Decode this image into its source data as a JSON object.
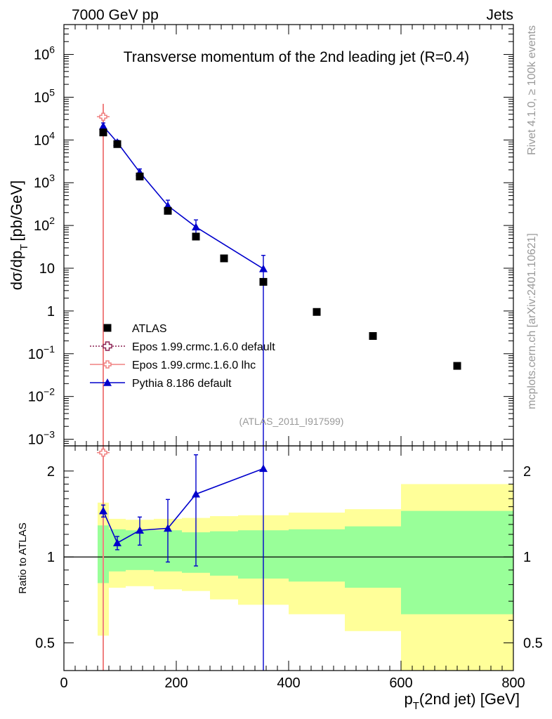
{
  "header": {
    "left": "7000 GeV pp",
    "right": "Jets"
  },
  "side_text": {
    "rivet": "Rivet 4.1.0, ≥ 100k events",
    "site": "mcplots.cern.ch [arXiv:2401.10621]"
  },
  "chart_data": [
    {
      "type": "scatter",
      "panel": "main",
      "title": "Transverse momentum of the 2nd leading jet (R=0.4)",
      "ylabel_main": "dσ/dp",
      "ylabel_sub": "T",
      "ylabel_unit": "[pb/GeV]",
      "yscale": "log",
      "ylim": [
        0.0007,
        5000000
      ],
      "xlim": [
        0,
        800
      ],
      "analysis_tag": "(ATLAS_2011_I917599)",
      "yticks": [
        {
          "value": 0.001,
          "base": "10",
          "exp": "−3"
        },
        {
          "value": 0.01,
          "base": "10",
          "exp": "−2"
        },
        {
          "value": 0.1,
          "base": "10",
          "exp": "−1"
        },
        {
          "value": 1,
          "base": "1",
          "exp": ""
        },
        {
          "value": 10,
          "base": "10",
          "exp": ""
        },
        {
          "value": 100,
          "base": "10",
          "exp": "2"
        },
        {
          "value": 1000,
          "base": "10",
          "exp": "3"
        },
        {
          "value": 10000,
          "base": "10",
          "exp": "4"
        },
        {
          "value": 100000,
          "base": "10",
          "exp": "5"
        },
        {
          "value": 1000000,
          "base": "10",
          "exp": "6"
        }
      ],
      "legend": [
        {
          "label": "ATLAS",
          "color": "#000000",
          "style": "square"
        },
        {
          "label": "Epos 1.99.crmc.1.6.0 default",
          "color": "#8b2252",
          "style": "dotted-cross"
        },
        {
          "label": "Epos 1.99.crmc.1.6.0 lhc",
          "color": "#f08080",
          "style": "solid-cross"
        },
        {
          "label": "Pythia 8.186 default",
          "color": "#0000cc",
          "style": "triangle"
        }
      ],
      "series": [
        {
          "name": "ATLAS",
          "color": "#000000",
          "points": [
            {
              "x": 70,
              "y": 15000
            },
            {
              "x": 95,
              "y": 8000
            },
            {
              "x": 135,
              "y": 1400
            },
            {
              "x": 185,
              "y": 220
            },
            {
              "x": 235,
              "y": 55
            },
            {
              "x": 285,
              "y": 17
            },
            {
              "x": 355,
              "y": 4.8
            },
            {
              "x": 450,
              "y": 0.95
            },
            {
              "x": 550,
              "y": 0.26
            },
            {
              "x": 700,
              "y": 0.052
            }
          ]
        },
        {
          "name": "Epos 1.99.crmc.1.6.0 lhc",
          "color": "#f08080",
          "points": [
            {
              "x": 70,
              "y": 35000,
              "ylo": 0.0001,
              "yhi": 70000
            }
          ]
        },
        {
          "name": "Pythia 8.186 default",
          "color": "#0000cc",
          "points": [
            {
              "x": 70,
              "y": 21000,
              "ylo": 17500,
              "yhi": 25000
            },
            {
              "x": 95,
              "y": 8800,
              "ylo": 7800,
              "yhi": 9800
            },
            {
              "x": 135,
              "y": 1750,
              "ylo": 1450,
              "yhi": 2100
            },
            {
              "x": 185,
              "y": 290,
              "ylo": 210,
              "yhi": 390
            },
            {
              "x": 235,
              "y": 92,
              "ylo": 55,
              "yhi": 135
            },
            {
              "x": 355,
              "y": 9.7,
              "ylo": 0.0001,
              "yhi": 20
            }
          ]
        }
      ]
    },
    {
      "type": "scatter",
      "panel": "ratio",
      "ylabel": "Ratio to ATLAS",
      "xlabel_main": "p",
      "xlabel_sub": "T",
      "xlabel_rest": "(2nd jet) [GeV]",
      "yscale": "log",
      "ylim": [
        0.4,
        2.45
      ],
      "xlim": [
        0,
        800
      ],
      "xticks": [
        {
          "value": 0,
          "label": "0"
        },
        {
          "value": 200,
          "label": "200"
        },
        {
          "value": 400,
          "label": "400"
        },
        {
          "value": 600,
          "label": "600"
        },
        {
          "value": 800,
          "label": "800"
        }
      ],
      "yticks": [
        {
          "value": 0.5,
          "label": "0.5"
        },
        {
          "value": 1,
          "label": "1"
        },
        {
          "value": 2,
          "label": "2"
        }
      ],
      "bands": [
        {
          "x0": 60,
          "x1": 80,
          "in_lo": 0.81,
          "in_hi": 1.29,
          "out_lo": 0.53,
          "out_hi": 1.55
        },
        {
          "x0": 80,
          "x1": 110,
          "in_lo": 0.89,
          "in_hi": 1.25,
          "out_lo": 0.78,
          "out_hi": 1.36
        },
        {
          "x0": 110,
          "x1": 160,
          "in_lo": 0.9,
          "in_hi": 1.24,
          "out_lo": 0.79,
          "out_hi": 1.35
        },
        {
          "x0": 160,
          "x1": 210,
          "in_lo": 0.89,
          "in_hi": 1.24,
          "out_lo": 0.77,
          "out_hi": 1.36
        },
        {
          "x0": 210,
          "x1": 260,
          "in_lo": 0.88,
          "in_hi": 1.22,
          "out_lo": 0.76,
          "out_hi": 1.37
        },
        {
          "x0": 260,
          "x1": 310,
          "in_lo": 0.86,
          "in_hi": 1.23,
          "out_lo": 0.71,
          "out_hi": 1.39
        },
        {
          "x0": 310,
          "x1": 400,
          "in_lo": 0.84,
          "in_hi": 1.24,
          "out_lo": 0.68,
          "out_hi": 1.4
        },
        {
          "x0": 400,
          "x1": 500,
          "in_lo": 0.82,
          "in_hi": 1.25,
          "out_lo": 0.63,
          "out_hi": 1.43
        },
        {
          "x0": 500,
          "x1": 600,
          "in_lo": 0.78,
          "in_hi": 1.28,
          "out_lo": 0.55,
          "out_hi": 1.47
        },
        {
          "x0": 600,
          "x1": 800,
          "in_lo": 0.63,
          "in_hi": 1.45,
          "out_lo": 0.36,
          "out_hi": 1.8
        }
      ],
      "series": [
        {
          "name": "Epos 1.99.crmc.1.6.0 lhc",
          "color": "#f08080",
          "points": [
            {
              "x": 70,
              "y": 2.32,
              "ylo": 0.3,
              "yhi": 2.6
            }
          ]
        },
        {
          "name": "Pythia 8.186 default",
          "color": "#0000cc",
          "points": [
            {
              "x": 70,
              "y": 1.45,
              "ylo": 1.38,
              "yhi": 1.52
            },
            {
              "x": 95,
              "y": 1.12,
              "ylo": 1.06,
              "yhi": 1.18
            },
            {
              "x": 135,
              "y": 1.24,
              "ylo": 1.1,
              "yhi": 1.38
            },
            {
              "x": 185,
              "y": 1.26,
              "ylo": 0.96,
              "yhi": 1.59
            },
            {
              "x": 235,
              "y": 1.66,
              "ylo": 0.93,
              "yhi": 2.28
            },
            {
              "x": 355,
              "y": 2.04,
              "ylo": 0.3,
              "yhi": 2.8
            }
          ]
        }
      ]
    }
  ]
}
